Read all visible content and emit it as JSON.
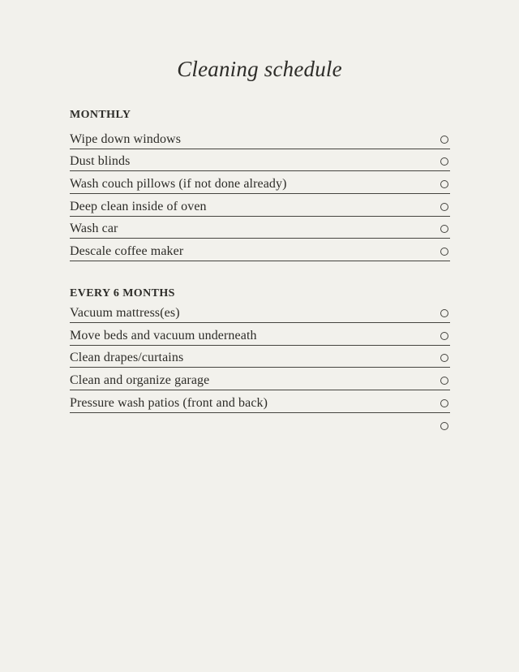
{
  "page": {
    "title": "Cleaning schedule",
    "background_color": "#f2f1ec",
    "text_color": "#2d2c28",
    "rule_color": "#45443f"
  },
  "sections": [
    {
      "heading": "MONTHLY",
      "items": [
        "Wipe down windows",
        "Dust blinds",
        "Wash couch pillows (if not done already)",
        "Deep clean inside of oven",
        "Wash car",
        "Descale coffee maker"
      ]
    },
    {
      "heading": "EVERY 6 MONTHS",
      "items": [
        "Vacuum mattress(es)",
        "Move beds and vacuum underneath",
        "Clean drapes/curtains",
        "Clean and organize garage",
        "Pressure wash patios (front and back)"
      ],
      "trailing_empty_checkbox": true
    }
  ]
}
